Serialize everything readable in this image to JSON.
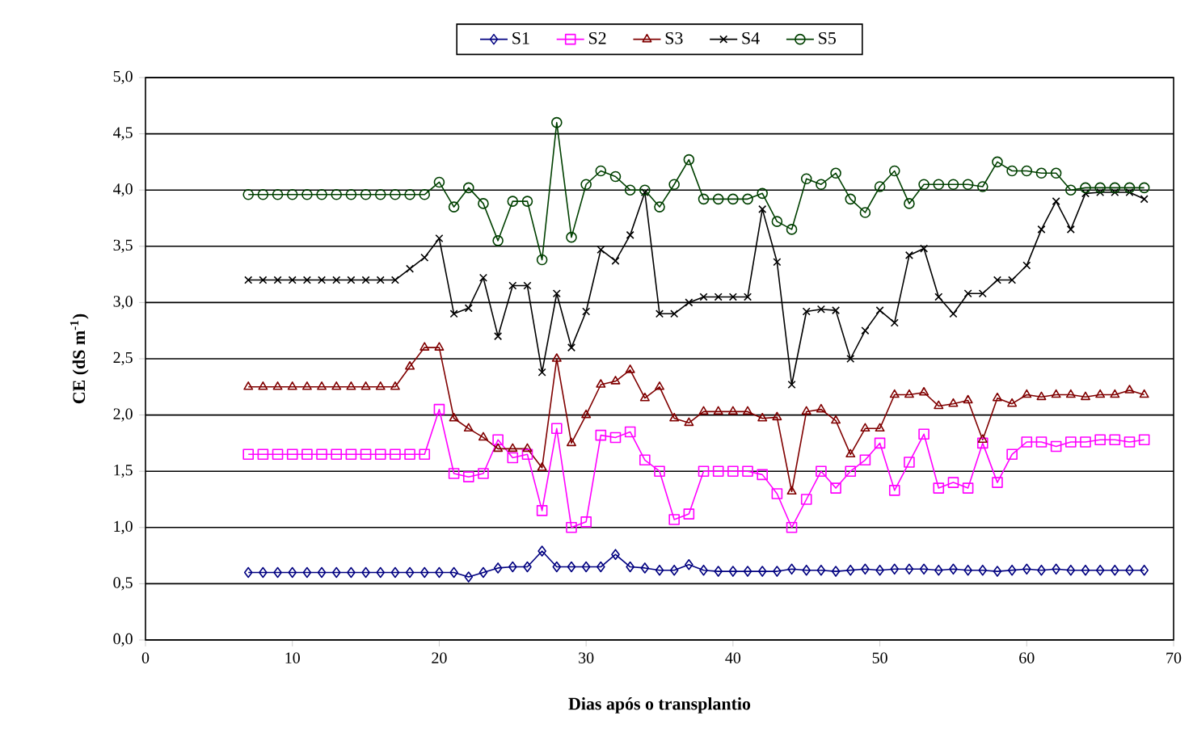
{
  "chart_data": {
    "type": "line",
    "xlabel": "**Dias após o transplantio**",
    "ylabel": "**CE (dS m$^{-1}$)**",
    "x": [
      7,
      8,
      9,
      10,
      11,
      12,
      13,
      14,
      15,
      16,
      17,
      18,
      19,
      20,
      21,
      22,
      23,
      24,
      25,
      26,
      27,
      28,
      29,
      30,
      31,
      32,
      33,
      34,
      35,
      36,
      37,
      38,
      39,
      40,
      41,
      42,
      43,
      44,
      45,
      46,
      47,
      48,
      49,
      50,
      51,
      52,
      53,
      54,
      55,
      56,
      57,
      58,
      59,
      60,
      61,
      62,
      63,
      64,
      65,
      66,
      67,
      68
    ],
    "xlim": [
      0,
      70
    ],
    "xticks": [
      0,
      10,
      20,
      30,
      40,
      50,
      60,
      70
    ],
    "ylim": [
      0,
      5
    ],
    "yticks": [
      {
        "value": 0,
        "label": "0,0"
      },
      {
        "value": 0.5,
        "label": "0,5"
      },
      {
        "value": 1,
        "label": "1,0"
      },
      {
        "value": 1.5,
        "label": "1,5"
      },
      {
        "value": 2,
        "label": "2,0"
      },
      {
        "value": 2.5,
        "label": "2,5"
      },
      {
        "value": 3,
        "label": "3,0"
      },
      {
        "value": 3.5,
        "label": "3,5"
      },
      {
        "value": 4,
        "label": "4,0"
      },
      {
        "value": 4.5,
        "label": "4,5"
      },
      {
        "value": 5,
        "label": "5,0"
      }
    ],
    "grid": "y",
    "legend": "top",
    "line_style": "solid",
    "series": [
      {
        "name": "S1",
        "color": "#000080",
        "marker": "diamond",
        "values": [
          0.6,
          0.6,
          0.6,
          0.6,
          0.6,
          0.6,
          0.6,
          0.6,
          0.6,
          0.6,
          0.6,
          0.6,
          0.6,
          0.6,
          0.6,
          0.56,
          0.6,
          0.64,
          0.65,
          0.65,
          0.79,
          0.65,
          0.65,
          0.65,
          0.65,
          0.76,
          0.65,
          0.64,
          0.62,
          0.62,
          0.67,
          0.62,
          0.61,
          0.61,
          0.61,
          0.61,
          0.61,
          0.63,
          0.62,
          0.62,
          0.61,
          0.62,
          0.63,
          0.62,
          0.63,
          0.63,
          0.63,
          0.62,
          0.63,
          0.62,
          0.62,
          0.61,
          0.62,
          0.63,
          0.62,
          0.63,
          0.62,
          0.62,
          0.62,
          0.62,
          0.62,
          0.62
        ]
      },
      {
        "name": "S2",
        "color": "#ff00ff",
        "marker": "square",
        "values": [
          1.65,
          1.65,
          1.65,
          1.65,
          1.65,
          1.65,
          1.65,
          1.65,
          1.65,
          1.65,
          1.65,
          1.65,
          1.65,
          2.05,
          1.48,
          1.45,
          1.48,
          1.78,
          1.62,
          1.65,
          1.15,
          1.88,
          1.0,
          1.05,
          1.82,
          1.8,
          1.85,
          1.6,
          1.5,
          1.07,
          1.12,
          1.5,
          1.5,
          1.5,
          1.5,
          1.47,
          1.3,
          1.0,
          1.25,
          1.5,
          1.35,
          1.5,
          1.6,
          1.75,
          1.33,
          1.58,
          1.83,
          1.35,
          1.4,
          1.35,
          1.75,
          1.4,
          1.65,
          1.76,
          1.76,
          1.72,
          1.76,
          1.76,
          1.78,
          1.78,
          1.76,
          1.78
        ]
      },
      {
        "name": "S3",
        "color": "#800000",
        "marker": "triangle",
        "values": [
          2.25,
          2.25,
          2.25,
          2.25,
          2.25,
          2.25,
          2.25,
          2.25,
          2.25,
          2.25,
          2.25,
          2.43,
          2.6,
          2.6,
          1.97,
          1.88,
          1.8,
          1.7,
          1.7,
          1.7,
          1.53,
          2.5,
          1.75,
          2.0,
          2.27,
          2.3,
          2.4,
          2.15,
          2.25,
          1.97,
          1.93,
          2.03,
          2.03,
          2.03,
          2.03,
          1.97,
          1.98,
          1.32,
          2.03,
          2.05,
          1.95,
          1.65,
          1.88,
          1.88,
          2.18,
          2.18,
          2.2,
          2.08,
          2.1,
          2.13,
          1.78,
          2.15,
          2.1,
          2.18,
          2.16,
          2.18,
          2.18,
          2.16,
          2.18,
          2.18,
          2.22,
          2.18
        ]
      },
      {
        "name": "S4",
        "color": "#000000",
        "marker": "cross",
        "values": [
          3.2,
          3.2,
          3.2,
          3.2,
          3.2,
          3.2,
          3.2,
          3.2,
          3.2,
          3.2,
          3.2,
          3.3,
          3.4,
          3.57,
          2.9,
          2.95,
          3.22,
          2.7,
          3.15,
          3.15,
          2.38,
          3.08,
          2.6,
          2.92,
          3.47,
          3.37,
          3.6,
          3.98,
          2.9,
          2.9,
          3.0,
          3.05,
          3.05,
          3.05,
          3.05,
          3.83,
          3.36,
          2.27,
          2.92,
          2.94,
          2.93,
          2.5,
          2.75,
          2.93,
          2.82,
          3.42,
          3.48,
          3.05,
          2.9,
          3.08,
          3.08,
          3.2,
          3.2,
          3.33,
          3.65,
          3.9,
          3.65,
          3.97,
          3.98,
          3.98,
          3.98,
          3.92
        ]
      },
      {
        "name": "S5",
        "color": "#004000",
        "marker": "circle",
        "values": [
          3.96,
          3.96,
          3.96,
          3.96,
          3.96,
          3.96,
          3.96,
          3.96,
          3.96,
          3.96,
          3.96,
          3.96,
          3.96,
          4.07,
          3.85,
          4.02,
          3.88,
          3.55,
          3.9,
          3.9,
          3.38,
          4.6,
          3.58,
          4.05,
          4.17,
          4.12,
          4.0,
          4.0,
          3.85,
          4.05,
          4.27,
          3.92,
          3.92,
          3.92,
          3.92,
          3.97,
          3.72,
          3.65,
          4.1,
          4.05,
          4.15,
          3.92,
          3.8,
          4.03,
          4.17,
          3.88,
          4.05,
          4.05,
          4.05,
          4.05,
          4.03,
          4.25,
          4.17,
          4.17,
          4.15,
          4.15,
          4.0,
          4.02,
          4.02,
          4.02,
          4.02,
          4.02
        ]
      }
    ]
  }
}
